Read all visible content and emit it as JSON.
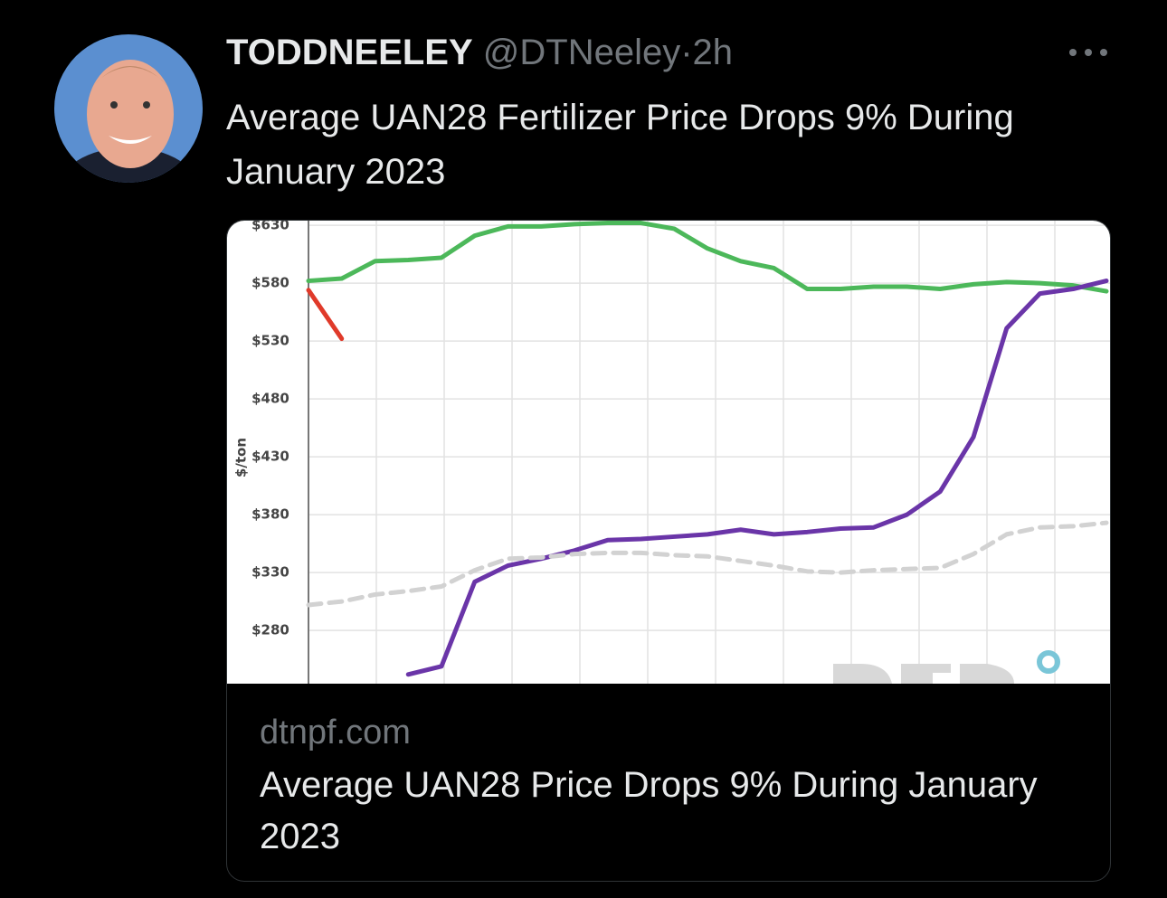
{
  "tweet": {
    "author": "TODDNEELEY",
    "handle": "@DTNeeley",
    "separator": "·",
    "time": "2h",
    "text": "Average UAN28 Fertilizer Price Drops 9% During January 2023"
  },
  "card": {
    "domain": "dtnpf.com",
    "title": "Average UAN28 Price Drops 9% During January 2023"
  },
  "chart_data": {
    "type": "line",
    "ylabel": "$/ton",
    "categories": [
      null,
      null,
      null,
      null,
      null,
      null,
      null,
      null,
      null,
      null,
      null,
      null,
      null,
      null,
      null,
      null,
      null,
      null,
      null,
      null,
      null,
      null,
      null,
      null,
      null
    ],
    "series": [
      {
        "color": "#4cb85a",
        "dashed": false,
        "values": [
          582,
          584,
          599,
          600,
          602,
          621,
          629,
          629,
          631,
          632,
          632,
          627,
          610,
          599,
          593,
          575,
          575,
          577,
          577,
          575,
          579,
          581,
          580,
          578,
          573
        ]
      },
      {
        "color": "#6a35a8",
        "dashed": false,
        "values": [
          null,
          null,
          null,
          242,
          249,
          322,
          336,
          342,
          349,
          358,
          359,
          361,
          363,
          367,
          363,
          365,
          368,
          369,
          380,
          400,
          447,
          541,
          571,
          575,
          582
        ]
      },
      {
        "color": "#d2d2d2",
        "dashed": true,
        "values": [
          302,
          305,
          311,
          314,
          318,
          332,
          342,
          343,
          346,
          347,
          347,
          345,
          344,
          340,
          336,
          331,
          330,
          332,
          333,
          334,
          346,
          363,
          369,
          370,
          373
        ]
      },
      {
        "color": "#e03a2a",
        "dashed": false,
        "values": [
          574,
          532,
          null,
          null,
          null,
          null,
          null,
          null,
          null,
          null,
          null,
          null,
          null,
          null,
          null,
          null,
          null,
          null,
          null,
          null,
          null,
          null,
          null,
          null,
          null
        ]
      }
    ],
    "ylim": [
      234,
      634
    ],
    "yticks": [
      {
        "value": 280,
        "label": "$280"
      },
      {
        "value": 330,
        "label": "$330"
      },
      {
        "value": 380,
        "label": "$380"
      },
      {
        "value": 430,
        "label": "$430"
      },
      {
        "value": 480,
        "label": "$480"
      },
      {
        "value": 530,
        "label": "$530"
      },
      {
        "value": 580,
        "label": "$580"
      },
      {
        "value": 630,
        "label": "$630"
      }
    ],
    "grid": true
  }
}
